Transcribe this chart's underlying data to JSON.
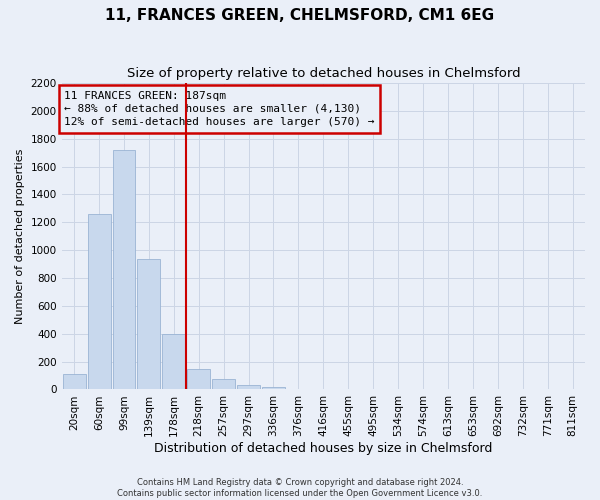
{
  "title": "11, FRANCES GREEN, CHELMSFORD, CM1 6EG",
  "subtitle": "Size of property relative to detached houses in Chelmsford",
  "xlabel": "Distribution of detached houses by size in Chelmsford",
  "ylabel": "Number of detached properties",
  "footer_lines": [
    "Contains HM Land Registry data © Crown copyright and database right 2024.",
    "Contains public sector information licensed under the Open Government Licence v3.0."
  ],
  "categories": [
    "20sqm",
    "60sqm",
    "99sqm",
    "139sqm",
    "178sqm",
    "218sqm",
    "257sqm",
    "297sqm",
    "336sqm",
    "376sqm",
    "416sqm",
    "455sqm",
    "495sqm",
    "534sqm",
    "574sqm",
    "613sqm",
    "653sqm",
    "692sqm",
    "732sqm",
    "771sqm",
    "811sqm"
  ],
  "values": [
    110,
    1260,
    1720,
    940,
    400,
    145,
    75,
    35,
    18,
    0,
    0,
    0,
    0,
    0,
    0,
    0,
    0,
    0,
    0,
    0,
    0
  ],
  "bar_color": "#c8d8ed",
  "bar_edge_color": "#9ab4d4",
  "vline_x": 4.5,
  "vline_color": "#cc0000",
  "annotation_box_color": "#cc0000",
  "annotation_lines": [
    "11 FRANCES GREEN: 187sqm",
    "← 88% of detached houses are smaller (4,130)",
    "12% of semi-detached houses are larger (570) →"
  ],
  "ylim": [
    0,
    2200
  ],
  "yticks": [
    0,
    200,
    400,
    600,
    800,
    1000,
    1200,
    1400,
    1600,
    1800,
    2000,
    2200
  ],
  "grid_color": "#ccd5e5",
  "bg_color": "#eaeff8",
  "title_fontsize": 11,
  "subtitle_fontsize": 9.5,
  "xlabel_fontsize": 9,
  "ylabel_fontsize": 8,
  "tick_fontsize": 7.5,
  "annotation_fontsize": 8,
  "footer_fontsize": 6
}
